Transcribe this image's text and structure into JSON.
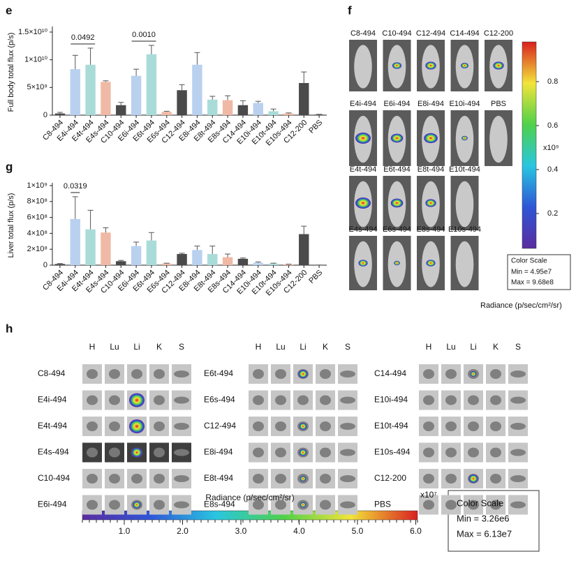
{
  "chart_data": [
    {
      "type": "bar",
      "panel": "e",
      "ylabel": "Full body total flux (p/s)",
      "categories": [
        "C8-494",
        "E4i-494",
        "E4t-494",
        "E4s-494",
        "C10-494",
        "E6i-494",
        "E6t-494",
        "E6s-494",
        "C12-494",
        "E8i-494",
        "E8t-494",
        "E8s-494",
        "C14-494",
        "E10i-494",
        "E10t-494",
        "E10s-494",
        "C12-200",
        "PBS"
      ],
      "values": [
        300000000.0,
        8300000000.0,
        9100000000.0,
        6000000000.0,
        1800000000.0,
        7100000000.0,
        11000000000.0,
        600000000.0,
        4500000000.0,
        9100000000.0,
        2800000000.0,
        2700000000.0,
        1800000000.0,
        2200000000.0,
        700000000.0,
        300000000.0,
        5800000000.0,
        100000000.0
      ],
      "errors": [
        200000000.0,
        2500000000.0,
        3000000000.0,
        200000000.0,
        500000000.0,
        1200000000.0,
        1600000000.0,
        100000000.0,
        1000000000.0,
        2200000000.0,
        600000000.0,
        800000000.0,
        800000000.0,
        300000000.0,
        400000000.0,
        100000000.0,
        2000000000.0,
        50000000.0
      ],
      "colors": [
        "#4a4a4a",
        "#b9d1ef",
        "#a9dcd8",
        "#f0b9a6",
        "#4a4a4a",
        "#b9d1ef",
        "#a9dcd8",
        "#f0b9a6",
        "#4a4a4a",
        "#b9d1ef",
        "#a9dcd8",
        "#f0b9a6",
        "#4a4a4a",
        "#b9d1ef",
        "#a9dcd8",
        "#f0b9a6",
        "#4a4a4a",
        "#4a4a4a"
      ],
      "ylim": [
        0,
        15500000000.0
      ],
      "yticks": [
        0,
        {
          "value": 5000000000.0,
          "label": "5×10⁹"
        },
        {
          "value": 10000000000.0,
          "label": "1×10¹⁰"
        },
        {
          "value": 15000000000.0,
          "label": "1.5×10¹⁰"
        }
      ],
      "annotations": [
        "0.0492",
        "0.0010"
      ]
    },
    {
      "type": "bar",
      "panel": "g",
      "ylabel": "Liver total flux (p/s)",
      "categories": [
        "C8-494",
        "E4i-494",
        "E4t-494",
        "E4s-494",
        "C10-494",
        "E6i-494",
        "E6t-494",
        "E6s-494",
        "C12-494",
        "E8i-494",
        "E8t-494",
        "E8s-494",
        "C14-494",
        "E10i-494",
        "E10t-494",
        "E10s-494",
        "C12-200",
        "PBS"
      ],
      "values": [
        15000000.0,
        580000000.0,
        450000000.0,
        410000000.0,
        50000000.0,
        240000000.0,
        310000000.0,
        20000000.0,
        140000000.0,
        190000000.0,
        140000000.0,
        100000000.0,
        80000000.0,
        30000000.0,
        20000000.0,
        10000000.0,
        390000000.0,
        1000000.0
      ],
      "errors": [
        5000000.0,
        280000000.0,
        240000000.0,
        60000000.0,
        10000000.0,
        50000000.0,
        100000000.0,
        5000000.0,
        10000000.0,
        50000000.0,
        100000000.0,
        40000000.0,
        10000000.0,
        10000000.0,
        5000000.0,
        2000000.0,
        100000000.0,
        1000000.0
      ],
      "colors": [
        "#4a4a4a",
        "#b9d1ef",
        "#a9dcd8",
        "#f0b9a6",
        "#4a4a4a",
        "#b9d1ef",
        "#a9dcd8",
        "#f0b9a6",
        "#4a4a4a",
        "#b9d1ef",
        "#a9dcd8",
        "#f0b9a6",
        "#4a4a4a",
        "#b9d1ef",
        "#a9dcd8",
        "#f0b9a6",
        "#4a4a4a",
        "#4a4a4a"
      ],
      "ylim": [
        0,
        1000000000.0
      ],
      "yticks": [
        0,
        {
          "value": 200000000.0,
          "label": "2×10⁸"
        },
        {
          "value": 400000000.0,
          "label": "4×10⁸"
        },
        {
          "value": 600000000.0,
          "label": "6×10⁸"
        },
        {
          "value": 800000000.0,
          "label": "8×10⁸"
        },
        {
          "value": 1000000000.0,
          "label": "1×10⁹"
        }
      ],
      "annotations": [
        "0.0319"
      ]
    }
  ],
  "panel_f": {
    "panel": "f",
    "rows": [
      [
        "C8-494",
        "C10-494",
        "C12-494",
        "C14-494",
        "C12-200"
      ],
      [
        "E4i-494",
        "E6i-494",
        "E8i-494",
        "E10i-494",
        "PBS"
      ],
      [
        "E4t-494",
        "E6t-494",
        "E8t-494",
        "E10t-494"
      ],
      [
        "E4s-494",
        "E6s-494",
        "E8s-494",
        "E10s-494"
      ]
    ],
    "colorbar": {
      "ticks": [
        "0.8",
        "0.6",
        "0.4",
        "0.2"
      ],
      "exponent": "x10⁹",
      "scale_title": "Color Scale",
      "min": "Min = 4.95e7",
      "max": "Max = 9.68e8",
      "label": "Radiance (p/sec/cm²/sr)"
    }
  },
  "panel_h": {
    "panel": "h",
    "organs": [
      "H",
      "Lu",
      "Li",
      "K",
      "S"
    ],
    "groups": [
      [
        "C8-494",
        "E4i-494",
        "E4t-494",
        "E4s-494",
        "C10-494",
        "E6i-494"
      ],
      [
        "E6t-494",
        "E6s-494",
        "C12-494",
        "E8i-494",
        "E8t-494",
        "E8s-494"
      ],
      [
        "C14-494",
        "E10i-494",
        "E10t-494",
        "E10s-494",
        "C12-200",
        "PBS"
      ]
    ],
    "colorbar": {
      "ticks": [
        "1.0",
        "2.0",
        "3.0",
        "4.0",
        "5.0",
        "6.0"
      ],
      "exponent": "x10⁷",
      "label": "Radiance (p/sec/cm²/sr)",
      "scale_title": "Color Scale",
      "min": "Min = 3.26e6",
      "max": "Max = 6.13e7"
    }
  }
}
